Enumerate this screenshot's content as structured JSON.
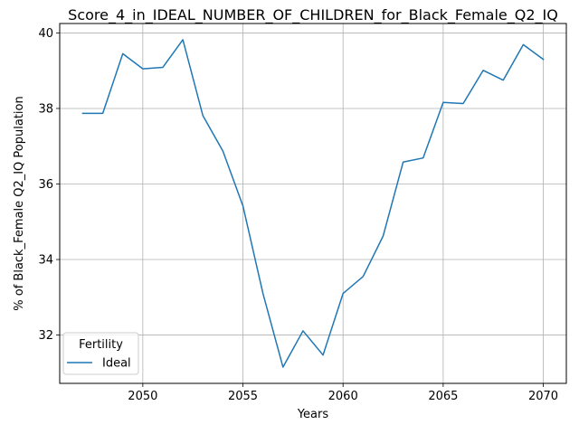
{
  "chart_data": {
    "type": "line",
    "title": "Score_4_in_IDEAL_NUMBER_OF_CHILDREN_for_Black_Female_Q2_IQ",
    "xlabel": "Years",
    "ylabel": "% of Black_Female Q2_IQ Population",
    "x": [
      2047,
      2048,
      2049,
      2050,
      2051,
      2052,
      2053,
      2054,
      2055,
      2056,
      2057,
      2058,
      2059,
      2060,
      2061,
      2062,
      2063,
      2064,
      2065,
      2066,
      2067,
      2068,
      2069,
      2070
    ],
    "series": [
      {
        "name": "Ideal",
        "color": "#1f77b4",
        "values": [
          37.87,
          37.87,
          39.45,
          39.05,
          39.09,
          39.82,
          37.81,
          36.87,
          35.42,
          33.1,
          31.15,
          32.11,
          31.47,
          33.1,
          33.55,
          34.62,
          36.58,
          36.69,
          38.16,
          38.13,
          39.01,
          38.75,
          39.69,
          39.3
        ]
      }
    ],
    "xlim": [
      2045.85,
      2071.15
    ],
    "ylim": [
      30.72,
      40.25
    ],
    "xticks": [
      2050,
      2055,
      2060,
      2065,
      2070
    ],
    "yticks": [
      32,
      34,
      36,
      38,
      40
    ],
    "grid": true,
    "legend": {
      "title": "Fertility",
      "position": "lower-left"
    }
  }
}
